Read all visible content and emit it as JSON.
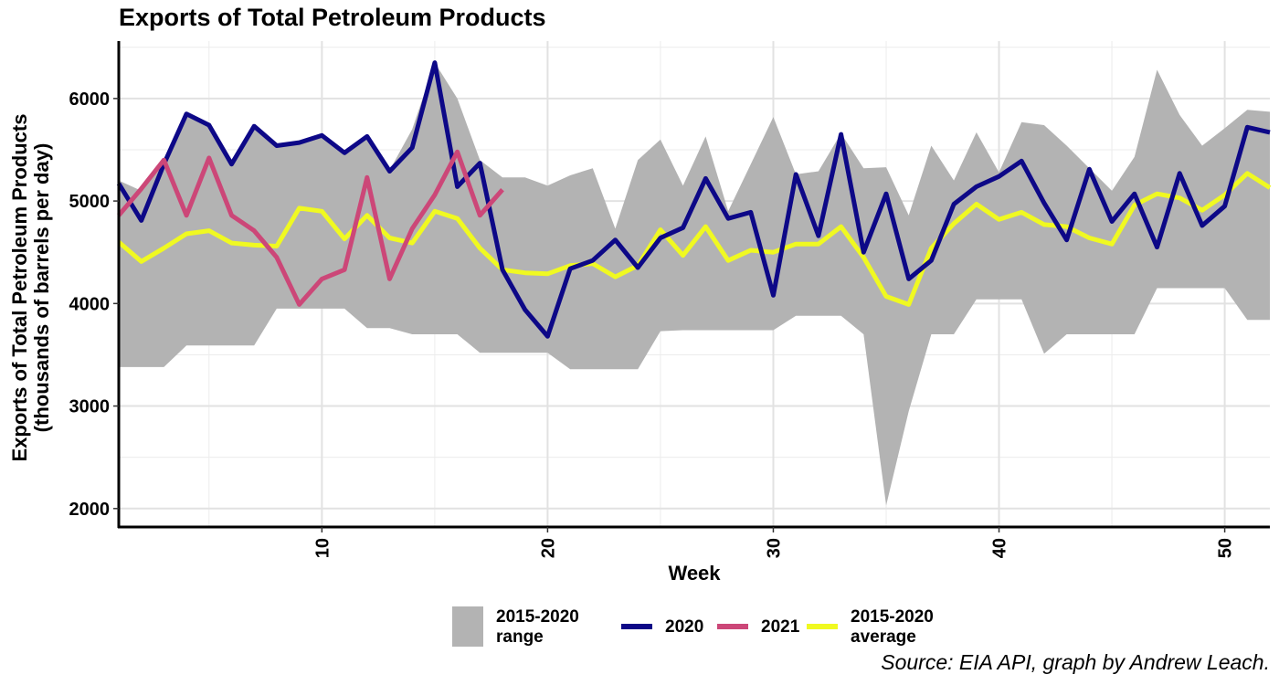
{
  "chart_data": {
    "type": "line",
    "title": "Exports of Total Petroleum Products",
    "xlabel": "Week",
    "ylabel": [
      "Exports of Total Petroleum Products",
      "(thousands of barrels per day)"
    ],
    "xlim": [
      1,
      52
    ],
    "ylim": [
      1820,
      6560
    ],
    "x_ticks": [
      10,
      20,
      30,
      40,
      50
    ],
    "y_ticks": [
      2000,
      3000,
      4000,
      5000,
      6000
    ],
    "grid": true,
    "legend_position": "bottom",
    "source": "Source: EIA API, graph by Andrew Leach.",
    "range": {
      "name": "2015-2020\nrange",
      "color": "#b3b3b3",
      "weeks": [
        1,
        2,
        3,
        4,
        5,
        6,
        7,
        8,
        9,
        10,
        11,
        12,
        13,
        14,
        15,
        16,
        17,
        18,
        19,
        20,
        21,
        22,
        23,
        24,
        25,
        26,
        27,
        28,
        29,
        30,
        31,
        32,
        33,
        34,
        35,
        36,
        37,
        38,
        39,
        40,
        41,
        42,
        43,
        44,
        45,
        46,
        47,
        48,
        49,
        50,
        51,
        52
      ],
      "upper": [
        5200,
        5100,
        5400,
        5850,
        5750,
        5370,
        5730,
        5540,
        5570,
        5640,
        5470,
        5620,
        5300,
        5700,
        6350,
        6000,
        5400,
        5230,
        5230,
        5150,
        5250,
        5320,
        4730,
        5400,
        5600,
        5150,
        5630,
        4900,
        5360,
        5820,
        5260,
        5290,
        5660,
        5320,
        5330,
        4860,
        5540,
        5200,
        5670,
        5280,
        5770,
        5740,
        5540,
        5320,
        5100,
        5430,
        6280,
        5840,
        5540,
        5710,
        5890,
        5870
      ],
      "lower": [
        3380,
        3380,
        3380,
        3590,
        3590,
        3590,
        3590,
        3950,
        3950,
        3950,
        3950,
        3760,
        3760,
        3700,
        3700,
        3700,
        3520,
        3520,
        3520,
        3520,
        3360,
        3360,
        3360,
        3360,
        3730,
        3740,
        3740,
        3740,
        3740,
        3740,
        3880,
        3880,
        3880,
        3700,
        2030,
        2950,
        3700,
        3700,
        4040,
        4040,
        4040,
        3510,
        3700,
        3700,
        3700,
        3700,
        4150,
        4150,
        4150,
        4150,
        3840,
        3840
      ]
    },
    "series": [
      {
        "name": "2020",
        "color": "#0d0887",
        "x": [
          1,
          2,
          3,
          4,
          5,
          6,
          7,
          8,
          9,
          10,
          11,
          12,
          13,
          14,
          15,
          16,
          17,
          18,
          19,
          20,
          21,
          22,
          23,
          24,
          25,
          26,
          27,
          28,
          29,
          30,
          31,
          32,
          33,
          34,
          35,
          36,
          37,
          38,
          39,
          40,
          41,
          42,
          43,
          44,
          45,
          46,
          47,
          48,
          49,
          50,
          51,
          52
        ],
        "y": [
          5170,
          4810,
          5360,
          5850,
          5740,
          5360,
          5730,
          5540,
          5570,
          5640,
          5470,
          5630,
          5290,
          5520,
          6350,
          5140,
          5370,
          4330,
          3940,
          3680,
          4340,
          4420,
          4620,
          4350,
          4640,
          4740,
          5220,
          4830,
          4890,
          4080,
          5260,
          4660,
          5650,
          4500,
          5070,
          4240,
          4420,
          4970,
          5140,
          5240,
          5390,
          4980,
          4620,
          5310,
          4800,
          5070,
          4550,
          5270,
          4760,
          4950,
          5720,
          5670
        ]
      },
      {
        "name": "2021",
        "color": "#cc4778",
        "x": [
          1,
          2,
          3,
          4,
          5,
          6,
          7,
          8,
          9,
          10,
          11,
          12,
          13,
          14,
          15,
          16,
          17,
          18
        ],
        "y": [
          4860,
          5120,
          5400,
          4860,
          5420,
          4860,
          4710,
          4450,
          3990,
          4240,
          4330,
          5230,
          4240,
          4730,
          5060,
          5480,
          4860,
          5110
        ]
      },
      {
        "name": "2015-2020\naverage",
        "color": "#f0f921",
        "x": [
          1,
          2,
          3,
          4,
          5,
          6,
          7,
          8,
          9,
          10,
          11,
          12,
          13,
          14,
          15,
          16,
          17,
          18,
          19,
          20,
          21,
          22,
          23,
          24,
          25,
          26,
          27,
          28,
          29,
          30,
          31,
          32,
          33,
          34,
          35,
          36,
          37,
          38,
          39,
          40,
          41,
          42,
          43,
          44,
          45,
          46,
          47,
          48,
          49,
          50,
          51,
          52
        ],
        "y": [
          4600,
          4410,
          4540,
          4680,
          4710,
          4590,
          4570,
          4560,
          4930,
          4900,
          4630,
          4860,
          4640,
          4590,
          4900,
          4830,
          4540,
          4330,
          4300,
          4290,
          4370,
          4390,
          4260,
          4370,
          4720,
          4470,
          4750,
          4420,
          4520,
          4500,
          4580,
          4580,
          4750,
          4450,
          4070,
          3990,
          4540,
          4780,
          4970,
          4820,
          4890,
          4770,
          4750,
          4640,
          4580,
          4960,
          5070,
          5030,
          4910,
          5060,
          5270,
          5130
        ]
      }
    ]
  },
  "legend": {
    "range_line1": "2015-2020",
    "range_line2": "range",
    "s2020": "2020",
    "s2021": "2021",
    "avg_line1": "2015-2020",
    "avg_line2": "average"
  }
}
